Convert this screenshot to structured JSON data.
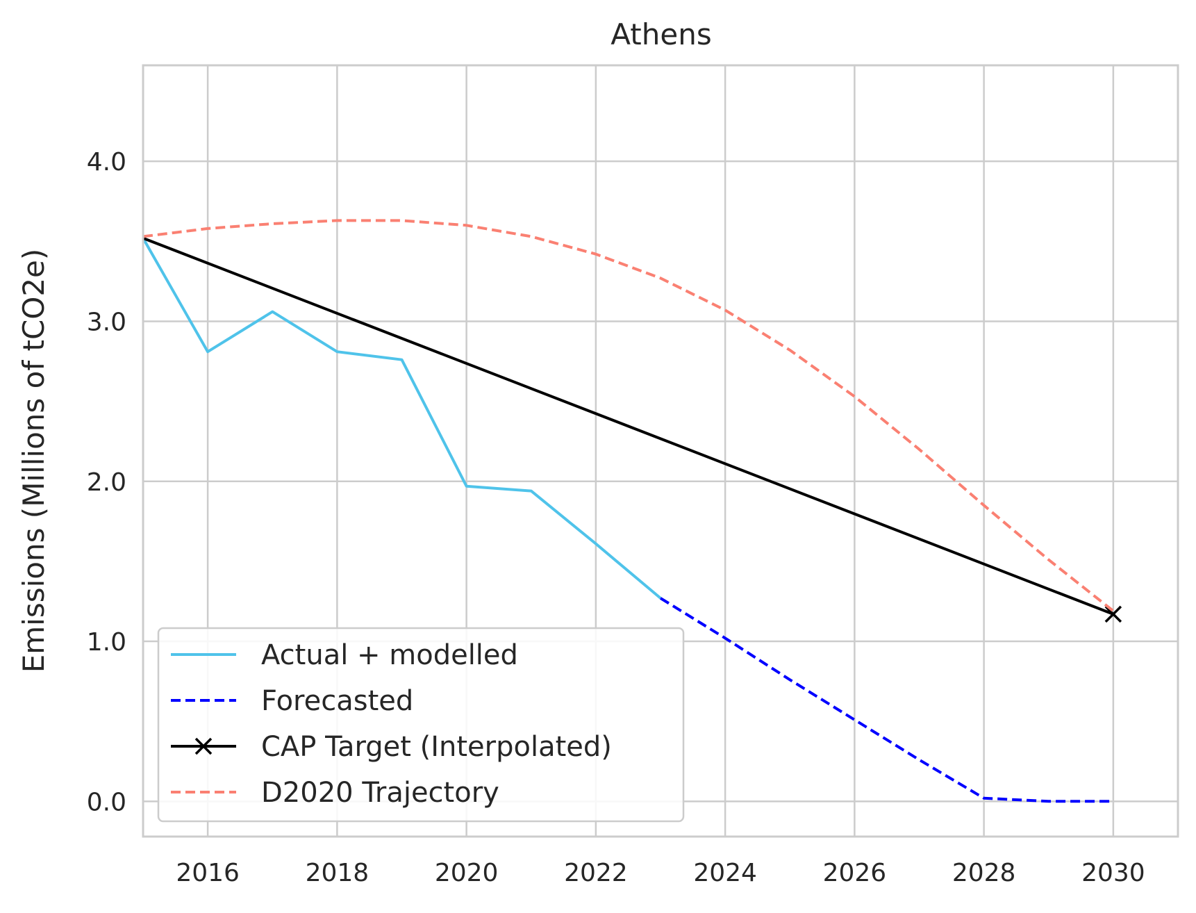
{
  "chart_data": {
    "type": "line",
    "title": "Athens",
    "xlabel": "",
    "ylabel": "Emissions (Millions of tCO2e)",
    "xlim": [
      2015,
      2031
    ],
    "ylim": [
      -0.22,
      4.6
    ],
    "xticks": [
      2016,
      2018,
      2020,
      2022,
      2024,
      2026,
      2028,
      2030
    ],
    "xtick_labels": [
      "2016",
      "2018",
      "2020",
      "2022",
      "2024",
      "2026",
      "2028",
      "2030"
    ],
    "yticks": [
      0,
      1,
      2,
      3,
      4
    ],
    "ytick_labels": [
      "0.0",
      "1.0",
      "2.0",
      "3.0",
      "4.0"
    ],
    "grid": true,
    "legend_position": "lower-left",
    "series": [
      {
        "name": "Actual + modelled",
        "color": "#4fc3ea",
        "style": "solid",
        "marker": "none",
        "x": [
          2015,
          2016,
          2017,
          2018,
          2019,
          2020,
          2021,
          2022,
          2023
        ],
        "y": [
          3.52,
          2.81,
          3.06,
          2.81,
          2.76,
          1.97,
          1.94,
          1.61,
          1.27
        ]
      },
      {
        "name": "Forecasted",
        "color": "#0000ff",
        "style": "dashed",
        "marker": "none",
        "x": [
          2023,
          2024,
          2025,
          2026,
          2027,
          2028,
          2029,
          2030
        ],
        "y": [
          1.27,
          1.02,
          0.76,
          0.51,
          0.26,
          0.02,
          0.0,
          0.0
        ]
      },
      {
        "name": "CAP Target (Interpolated)",
        "color": "#000000",
        "style": "solid",
        "marker": "x-end",
        "x": [
          2015,
          2030
        ],
        "y": [
          3.52,
          1.17
        ]
      },
      {
        "name": "D2020 Trajectory",
        "color": "#fa8072",
        "style": "dashed",
        "marker": "none",
        "x": [
          2015,
          2016,
          2017,
          2018,
          2019,
          2020,
          2021,
          2022,
          2023,
          2024,
          2025,
          2026,
          2027,
          2028,
          2029,
          2030
        ],
        "y": [
          3.53,
          3.58,
          3.61,
          3.63,
          3.63,
          3.6,
          3.53,
          3.42,
          3.27,
          3.07,
          2.82,
          2.53,
          2.2,
          1.85,
          1.51,
          1.19
        ]
      }
    ]
  }
}
